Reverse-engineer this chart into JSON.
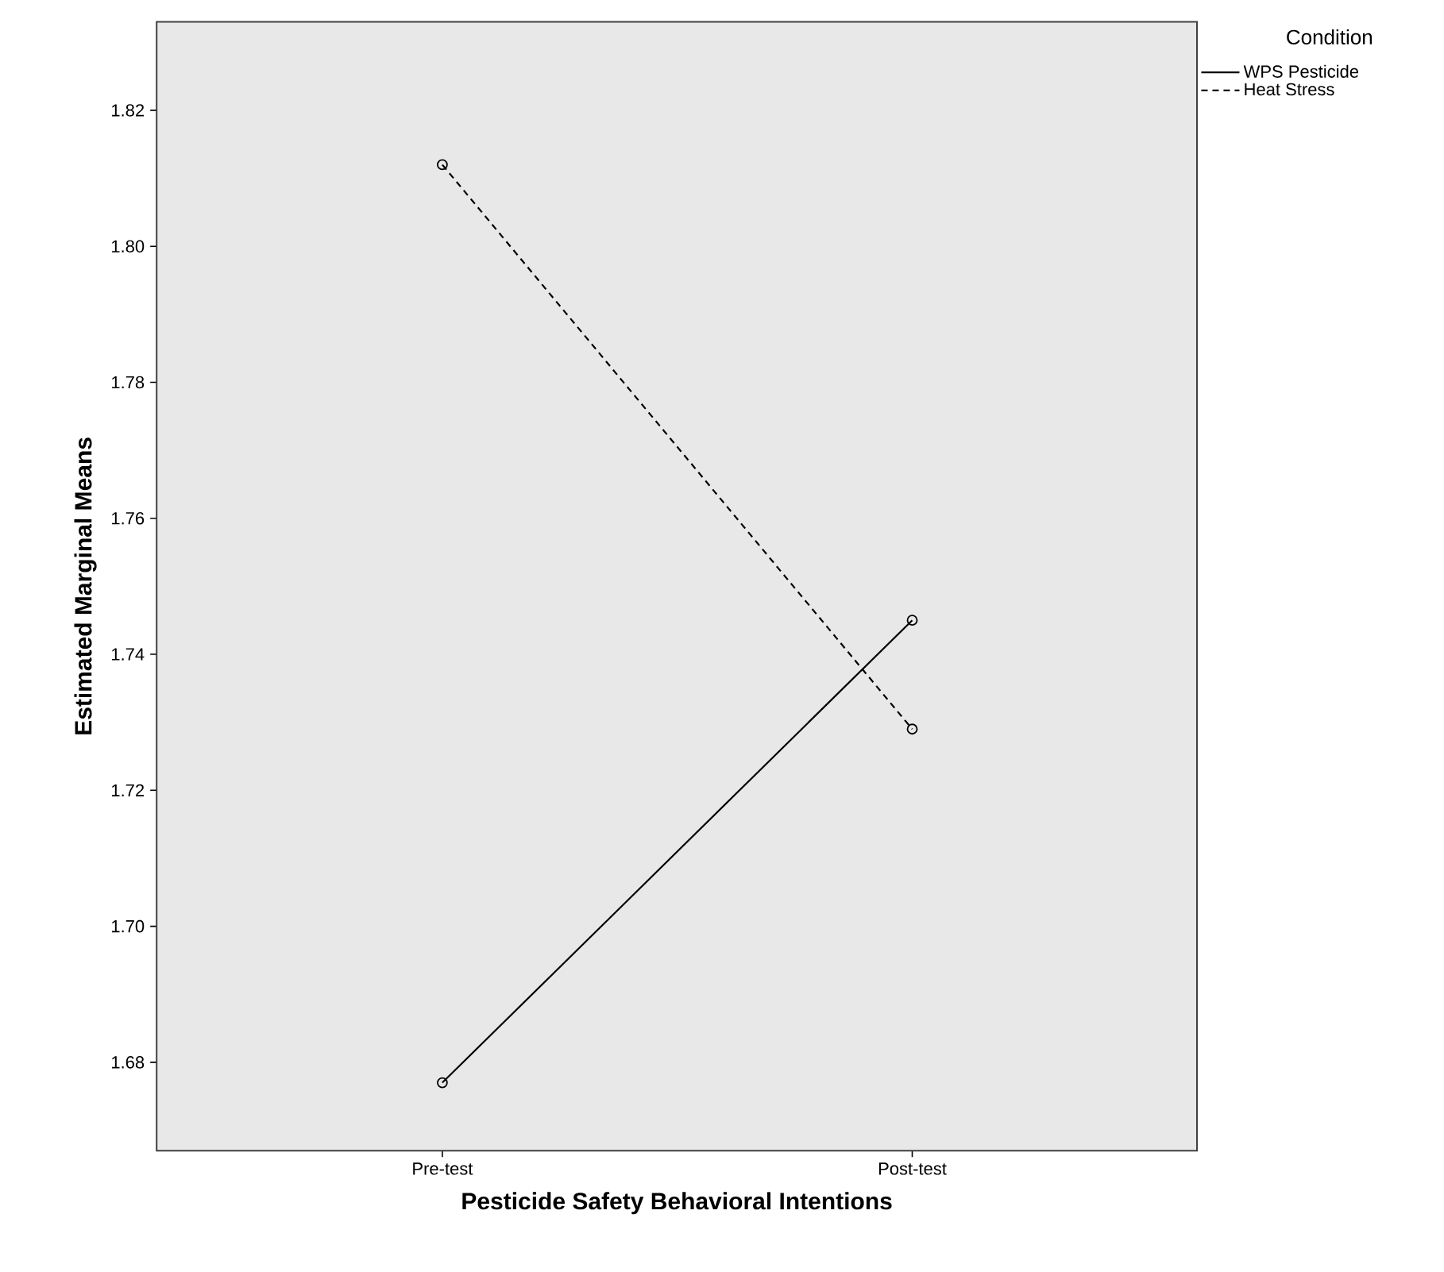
{
  "chart_data": {
    "type": "line",
    "xlabel": "Pesticide Safety Behavioral Intentions",
    "ylabel": "Estimated Marginal Means",
    "legend_title": "Condition",
    "categories": [
      "Pre-test",
      "Post-test"
    ],
    "series": [
      {
        "name": "WPS Pesticide",
        "color": "#000000",
        "values": [
          1.677,
          1.745
        ],
        "line_style": "solid"
      },
      {
        "name": "Heat Stress",
        "color": "#000000",
        "values": [
          1.812,
          1.729
        ],
        "line_style": "dashed"
      }
    ],
    "ylim": [
      1.667,
      1.833
    ],
    "yticks": [
      1.68,
      {
        "value": 1.7,
        "label": "1.70"
      },
      1.72,
      1.74,
      1.76,
      1.78,
      {
        "value": 1.8,
        "label": "1.80"
      },
      1.82
    ],
    "marker": "circle",
    "legend": "top right"
  }
}
